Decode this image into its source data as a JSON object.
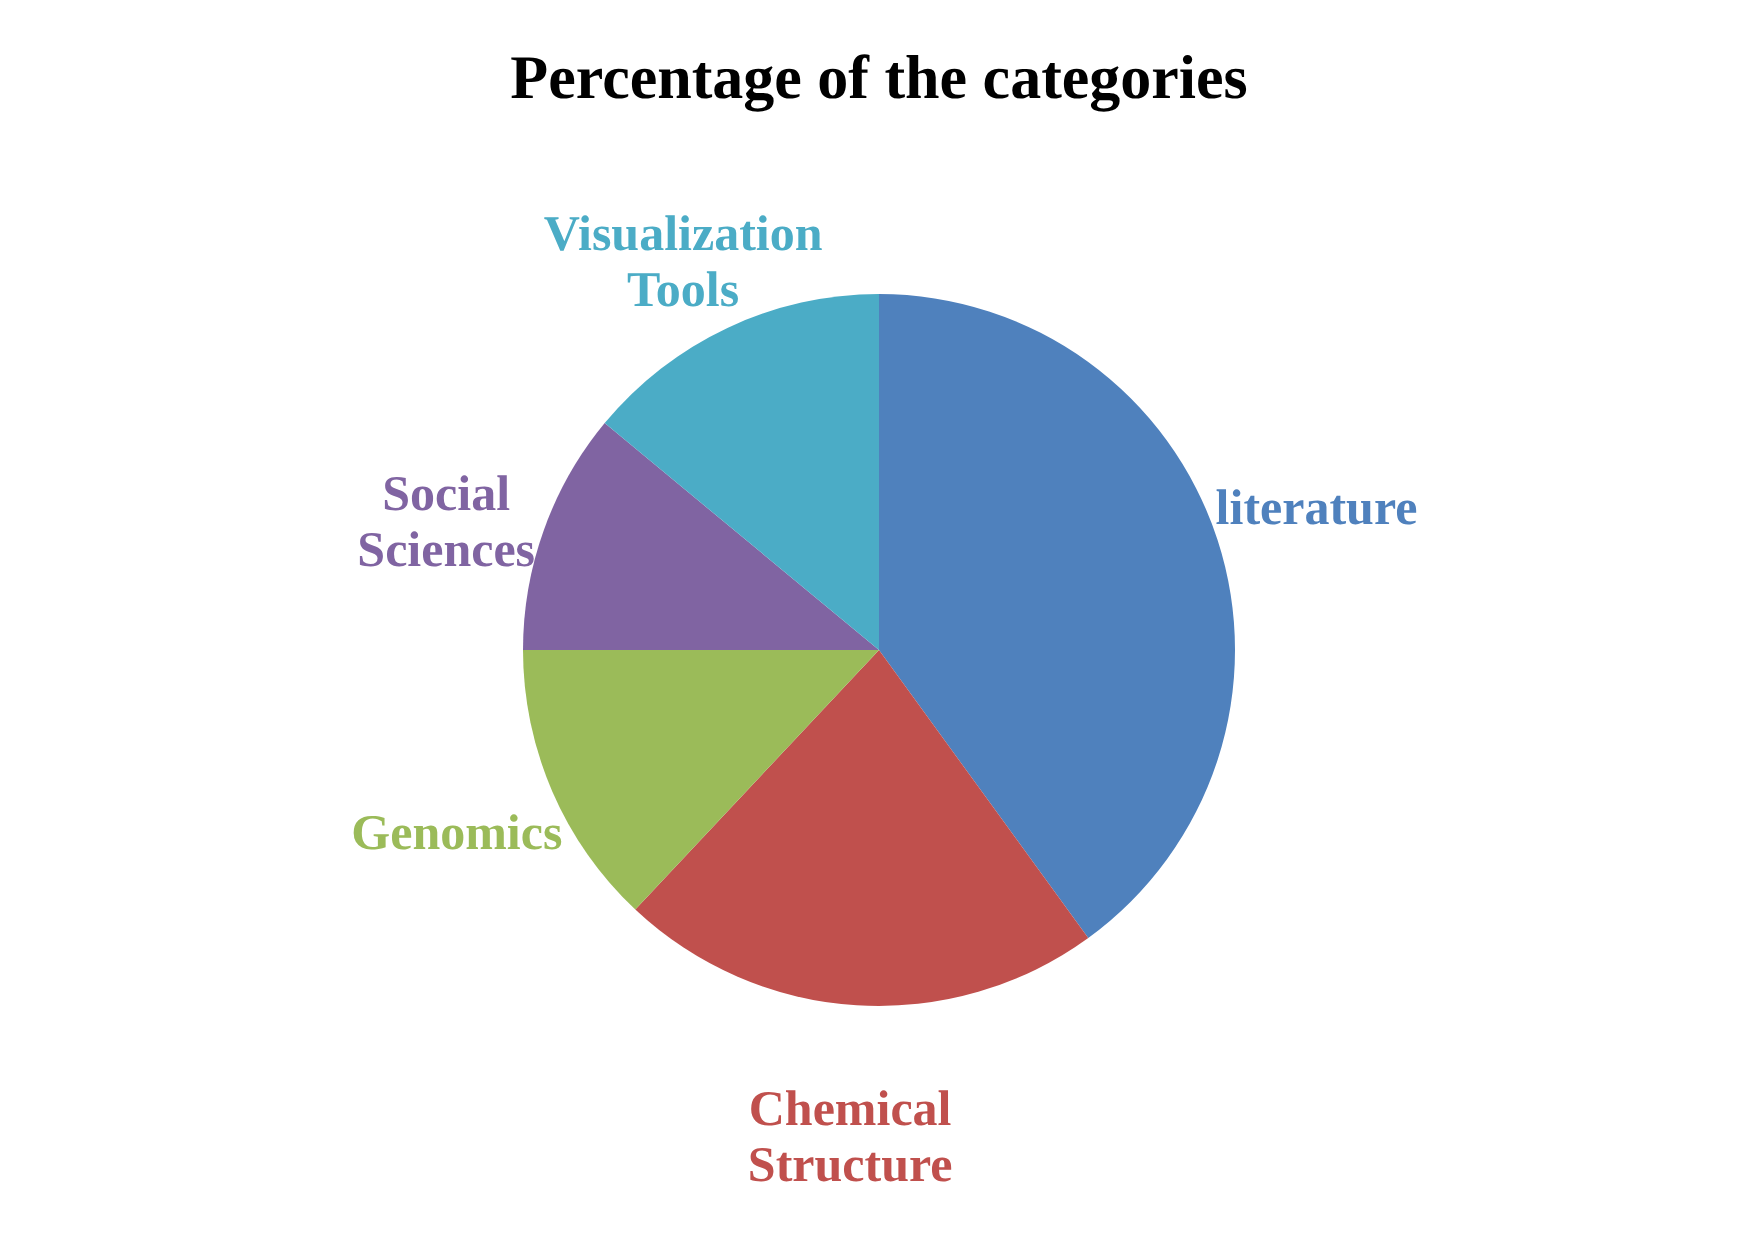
{
  "chart_data": {
    "type": "pie",
    "title": "Percentage of the categories",
    "categories": [
      "literature",
      "Chemical Structure",
      "Genomics",
      "Social Sciences",
      "Visualization Tools"
    ],
    "values": [
      40,
      22,
      13,
      11,
      14
    ],
    "colors": [
      "#4f81bd",
      "#c0504d",
      "#9bbb59",
      "#8064a2",
      "#4bacc6"
    ]
  }
}
